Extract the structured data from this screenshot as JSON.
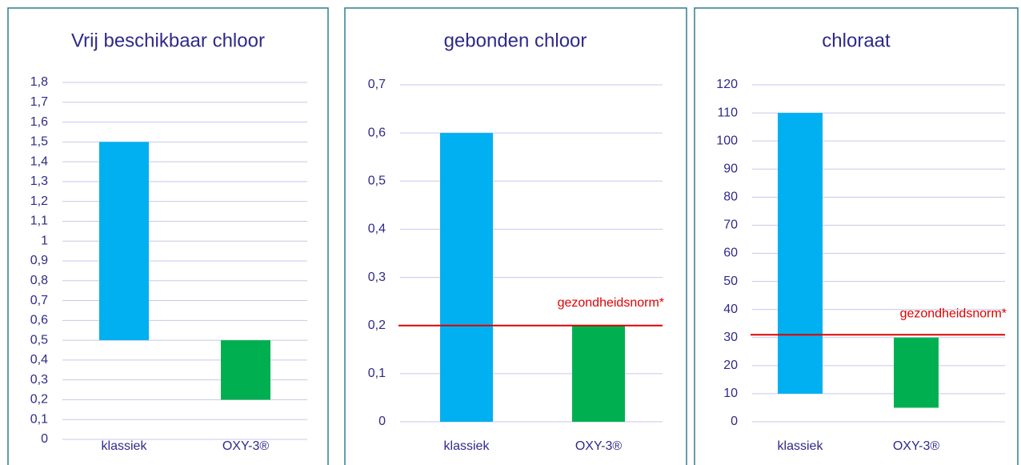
{
  "chart_data": [
    {
      "type": "floating-bar",
      "title": "Vrij beschikbaar chloor",
      "categories": [
        "klassiek",
        "OXY-3®"
      ],
      "low": [
        0.5,
        0.2
      ],
      "high": [
        1.5,
        0.5
      ],
      "colors": [
        "#00b0f0",
        "#00b050"
      ],
      "ylim": [
        0,
        1.8
      ],
      "yticks": [
        0,
        {
          "value": 0.1,
          "label": "0,1"
        },
        {
          "value": 0.2,
          "label": "0,2"
        },
        {
          "value": 0.3,
          "label": "0,3"
        },
        {
          "value": 0.4,
          "label": "0,4"
        },
        {
          "value": 0.5,
          "label": "0,5"
        },
        {
          "value": 0.6,
          "label": "0,6"
        },
        {
          "value": 0.7,
          "label": "0,7"
        },
        {
          "value": 0.8,
          "label": "0,8"
        },
        {
          "value": 0.9,
          "label": "0,9"
        },
        1,
        {
          "value": 1.1,
          "label": "1,1"
        },
        {
          "value": 1.2,
          "label": "1,2"
        },
        {
          "value": 1.3,
          "label": "1,3"
        },
        {
          "value": 1.4,
          "label": "1,4"
        },
        {
          "value": 1.5,
          "label": "1,5"
        },
        {
          "value": 1.6,
          "label": "1,6"
        },
        {
          "value": 1.7,
          "label": "1,7"
        },
        {
          "value": 1.8,
          "label": "1,8"
        }
      ],
      "grid": true
    },
    {
      "type": "floating-bar",
      "title": "gebonden chloor",
      "categories": [
        "klassiek",
        "OXY-3®"
      ],
      "low": [
        0,
        0
      ],
      "high": [
        0.6,
        0.2
      ],
      "colors": [
        "#00b0f0",
        "#00b050"
      ],
      "ylim": [
        0,
        0.7
      ],
      "yticks": [
        0,
        {
          "value": 0.1,
          "label": "0,1"
        },
        {
          "value": 0.2,
          "label": "0,2"
        },
        {
          "value": 0.3,
          "label": "0,3"
        },
        {
          "value": 0.4,
          "label": "0,4"
        },
        {
          "value": 0.5,
          "label": "0,5"
        },
        {
          "value": 0.6,
          "label": "0,6"
        },
        {
          "value": 0.7,
          "label": "0,7"
        }
      ],
      "grid": true,
      "reference": {
        "value": 0.2,
        "label": "gezondheidsnorm*",
        "color": "#e00000"
      }
    },
    {
      "type": "floating-bar",
      "title": "chloraat",
      "categories": [
        "klassiek",
        "OXY-3®"
      ],
      "low": [
        10,
        5
      ],
      "high": [
        110,
        30
      ],
      "colors": [
        "#00b0f0",
        "#00b050"
      ],
      "ylim": [
        0,
        120
      ],
      "yticks": [
        0,
        10,
        20,
        30,
        40,
        50,
        60,
        70,
        80,
        90,
        100,
        110,
        120
      ],
      "grid": true,
      "reference": {
        "value": 31,
        "label": "gezondheidsnorm*",
        "color": "#e00000"
      }
    }
  ]
}
